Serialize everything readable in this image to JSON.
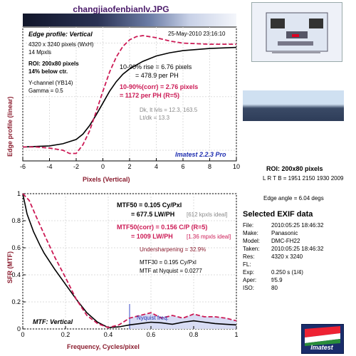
{
  "header": {
    "file_title": "changjiaofenbianlv.JPG"
  },
  "top_plot": {
    "heading": "Edge profile: Vertical",
    "datetime": "25-May-2010 23:16:10",
    "image_size": "4320 x 3240 pixels (WxH)",
    "megapixels": "14 Mpxls",
    "roi_line1": "ROI: 200x80 pixels",
    "roi_line2": "14% below ctr.",
    "channel": "Y-channel (YB14)",
    "gamma": "Gamma = 0.5",
    "rise1": "10-90% rise = 6.76 pixels",
    "rise2": "= 478.9 per PH",
    "rise_corr1": "10-90%(corr) = 2.76 pixels",
    "rise_corr2": "= 1172 per PH   (R=5)",
    "dk": "Dk, lt lvls = 12.3, 163.5",
    "ltdk": "Lt/dk = 13.3",
    "version": "Imatest 2.2.3 Pro",
    "xlabel": "Pixels (Vertical)",
    "ylabel": "Edge profile (linear)"
  },
  "bottom_plot": {
    "mtf50_1": "MTF50 = 0.105 Cy/Pxl",
    "mtf50_2": "= 677.5 LW/PH",
    "mtf50_ideal": "[612 kpxls ideal]",
    "mtf50c_1": "MTF50(corr) = 0.156 C/P  (R=5)",
    "mtf50c_2": "= 1009 LW/PH",
    "mtf50c_ideal": "[1.36 mpxls ideal]",
    "under": "Undersharpening = 32.9%",
    "mtf30": "MTF30 = 0.195 Cy/Pxl",
    "nyq": "MTF at Nyquist = 0.0277",
    "nyq_label": "Nyquist freq.",
    "heading": "MTF: Vertical",
    "xlabel": "Frequency, Cycles/pixel",
    "ylabel": "SFR (MTF)"
  },
  "side": {
    "roi": "ROI: 200x80 pixels",
    "lrtb": "L R T B = 1951 2150 1930 2009",
    "edge_angle": "Edge angle = 6.04 degs",
    "exif_title": "Selected EXIF data",
    "exif": [
      {
        "k": "File:",
        "v": "2010:05:25 18:46:32"
      },
      {
        "k": "Make:",
        "v": "Panasonic"
      },
      {
        "k": "Model:",
        "v": "DMC-FH22"
      },
      {
        "k": "Taken:",
        "v": "2010:05:25 18:46:32"
      },
      {
        "k": "Res:",
        "v": "4320 x 3240"
      },
      {
        "k": "FL:",
        "v": ""
      },
      {
        "k": "Exp:",
        "v": "0.250 s  (1/4)"
      },
      {
        "k": "Aper:",
        "v": "f/5.9"
      },
      {
        "k": "ISO:",
        "v": "80"
      }
    ],
    "logo": "Imatest"
  },
  "chart_data": [
    {
      "type": "line",
      "title": "Edge profile: Vertical",
      "xlabel": "Pixels (Vertical)",
      "ylabel": "Edge profile (linear)",
      "xlim": [
        -6,
        10
      ],
      "x_ticks": [
        "-6",
        "-4",
        "-2",
        "0",
        "2",
        "4",
        "6",
        "8",
        "10"
      ],
      "series": [
        {
          "color": "#000000",
          "x": [
            -6,
            -5,
            -4,
            -3,
            -2,
            -1.5,
            -1,
            -0.5,
            0,
            0.5,
            1,
            1.5,
            2,
            3,
            4,
            5,
            6,
            8,
            10
          ],
          "y": [
            0.03,
            0.035,
            0.04,
            0.06,
            0.1,
            0.15,
            0.23,
            0.33,
            0.44,
            0.55,
            0.64,
            0.71,
            0.76,
            0.83,
            0.88,
            0.91,
            0.93,
            0.95,
            0.96
          ]
        },
        {
          "color": "#cc1a55",
          "x": [
            -6,
            -5,
            -4,
            -3,
            -2.5,
            -2,
            -1.5,
            -1,
            -0.5,
            0,
            0.5,
            1,
            1.5,
            2,
            2.5,
            3,
            4,
            5,
            6,
            8,
            10
          ],
          "y": [
            0.03,
            0.03,
            0.02,
            0.0,
            -0.03,
            -0.03,
            0.05,
            0.18,
            0.36,
            0.55,
            0.73,
            0.87,
            0.97,
            1.03,
            1.06,
            1.07,
            1.05,
            1.02,
            1.0,
            0.99,
            0.99
          ]
        }
      ]
    },
    {
      "type": "line",
      "title": "MTF: Vertical",
      "xlabel": "Frequency, Cycles/pixel",
      "ylabel": "SFR (MTF)",
      "xlim": [
        0,
        1
      ],
      "ylim": [
        0,
        1
      ],
      "x_ticks": [
        "0",
        "0.2",
        "0.4",
        "0.6",
        "0.8",
        "1"
      ],
      "y_ticks": [
        "0",
        "0.2",
        "0.4",
        "0.6",
        "0.8",
        "1"
      ],
      "nyquist": 0.5,
      "series": [
        {
          "color": "#000000",
          "x": [
            0,
            0.02,
            0.05,
            0.08,
            0.1,
            0.15,
            0.2,
            0.25,
            0.3,
            0.35,
            0.4,
            0.45,
            0.5,
            0.55,
            0.6,
            0.65,
            0.7,
            0.75,
            0.8,
            0.85,
            0.9,
            0.95,
            1.0
          ],
          "y": [
            1.0,
            0.85,
            0.72,
            0.62,
            0.56,
            0.44,
            0.33,
            0.22,
            0.12,
            0.05,
            0.01,
            0.015,
            0.03,
            0.04,
            0.05,
            0.045,
            0.035,
            0.05,
            0.06,
            0.05,
            0.04,
            0.035,
            0.03
          ]
        },
        {
          "color": "#cc1a55",
          "x": [
            0,
            0.03,
            0.06,
            0.1,
            0.15,
            0.2,
            0.25,
            0.3,
            0.35,
            0.4,
            0.45,
            0.5,
            0.55,
            0.6,
            0.65,
            0.7,
            0.75,
            0.8,
            0.85,
            0.9,
            0.95,
            1.0
          ],
          "y": [
            1.0,
            0.95,
            0.84,
            0.7,
            0.53,
            0.38,
            0.22,
            0.1,
            0.04,
            0.01,
            0.03,
            0.08,
            0.1,
            0.12,
            0.08,
            0.1,
            0.08,
            0.11,
            0.09,
            0.09,
            0.08,
            0.06
          ]
        }
      ]
    }
  ]
}
